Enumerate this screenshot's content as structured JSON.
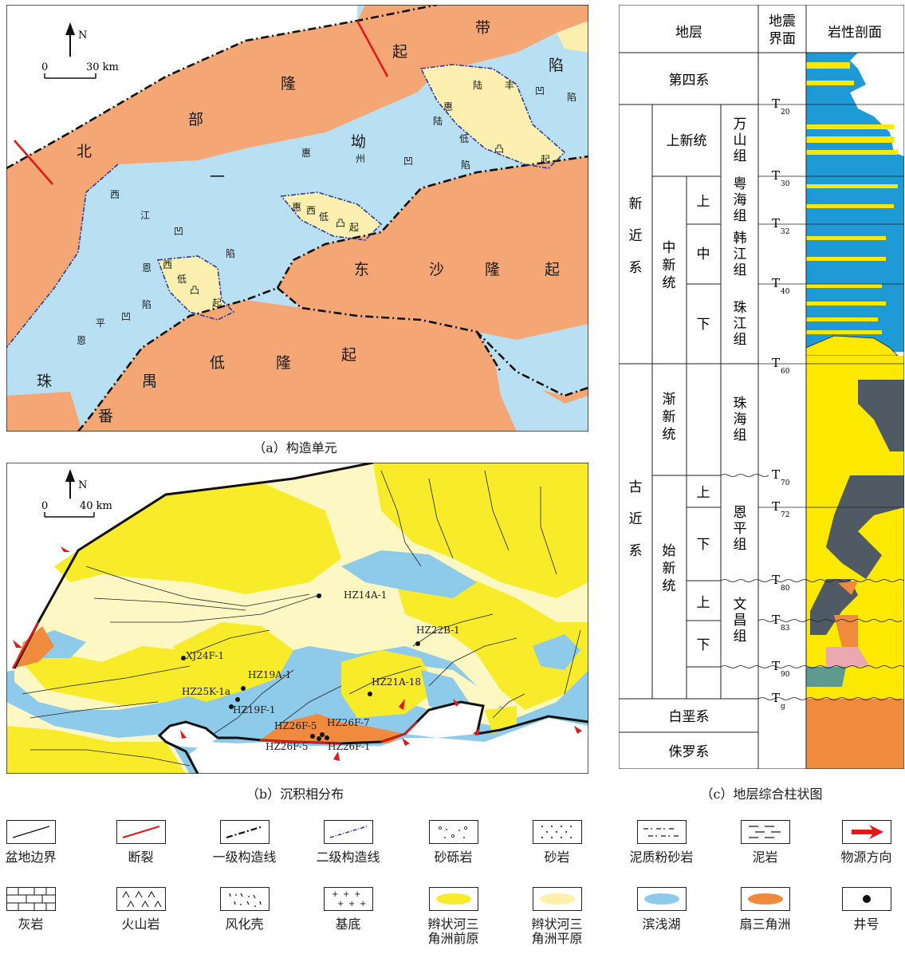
{
  "colors": {
    "uplift": "#f4a775",
    "sag": "#b8dff2",
    "low_uplift": "#fcefb0",
    "braided_front": "#f8ec2a",
    "braided_plain": "#fdf7c4",
    "shore_lake": "#8ecbea",
    "fan_delta": "#f08a3c",
    "fault": "#e0191b",
    "mud": "#1e9ad6",
    "sand": "#fde900",
    "dark_mud": "#505a64",
    "basement": "#f08a3c",
    "weathered": "#e8a9b0",
    "volcanic": "#5e9a90"
  },
  "panel_a": {
    "caption": "（a）构造单元",
    "north": "N",
    "scale_zero": "0",
    "scale_label": "30 km",
    "labels": {
      "bei": "北",
      "bu": "部",
      "long": "隆",
      "qi": "起",
      "dai": "带",
      "yi": "一",
      "hui": "惠",
      "ao": "坳",
      "zhou": "州",
      "ao2": "凹",
      "xian": "陷",
      "lufeng_lu": "陆",
      "lufeng_feng": "丰",
      "lufeng_ao": "凹",
      "lufeng_xian": "陷",
      "xian_top": "陷",
      "hl_hui": "惠",
      "hl_lu": "陆",
      "hl_di": "低",
      "hl_tu": "凸",
      "hl_qi": "起",
      "xj_xi": "西",
      "xj_jiang": "江",
      "xj_ao": "凹",
      "xj_xian": "陷",
      "hx_hui": "惠",
      "hx_xi": "西",
      "hx_di": "低",
      "hx_tu": "凸",
      "hx_qi": "起",
      "ex_en": "恩",
      "ex_xi": "西",
      "ex_di": "低",
      "ex_tu": "凸",
      "ex_qi": "起",
      "ep_en": "恩",
      "ep_ping": "平",
      "ep_ao": "凹",
      "ep_xian": "陷",
      "ds_dong": "东",
      "ds_sha": "沙",
      "ds_long": "隆",
      "ds_qi": "起",
      "py_zhu": "珠",
      "py_fan": "番",
      "py_yu": "禺",
      "py_di": "低",
      "py_long": "隆",
      "py_qi": "起"
    }
  },
  "panel_b": {
    "caption": "（b）沉积相分布",
    "north": "N",
    "scale_zero": "0",
    "scale_label": "40 km",
    "wells": [
      "HZ14A-1",
      "HZ22B-1",
      "XJ24F-1",
      "HZ19A-1",
      "HZ25K-1a",
      "HZ19F-1",
      "HZ21A-18",
      "HZ26F-5",
      "HZ26F-7",
      "HZ26F-5",
      "HZ26F-1"
    ]
  },
  "panel_c": {
    "caption": "（c）地层综合柱状图",
    "headers": [
      "地层",
      "地震\n界面",
      "岩性剖面"
    ],
    "systems": [
      "第四系",
      "新\n近\n系",
      "古\n近\n系",
      "白垩系",
      "侏罗系"
    ],
    "series": [
      "上新统",
      "中\n新\n统",
      "渐\n新\n统",
      "始\n新\n统"
    ],
    "sub": [
      "上",
      "中",
      "下",
      "上",
      "下",
      "上",
      "下"
    ],
    "formations": [
      "万\n山\n组",
      "粤\n海\n组",
      "韩\n江\n组",
      "珠\n江\n组",
      "珠\n海\n组",
      "恩\n平\n组",
      "文\n昌\n组"
    ],
    "horizons": [
      {
        "main": "T",
        "sub": "20"
      },
      {
        "main": "T",
        "sub": "30"
      },
      {
        "main": "T",
        "sub": "32"
      },
      {
        "main": "T",
        "sub": "40"
      },
      {
        "main": "T",
        "sub": "60"
      },
      {
        "main": "T",
        "sub": "70"
      },
      {
        "main": "T",
        "sub": "72"
      },
      {
        "main": "T",
        "sub": "80"
      },
      {
        "main": "T",
        "sub": "83"
      },
      {
        "main": "T",
        "sub": "90"
      },
      {
        "main": "T",
        "sub": "g"
      }
    ]
  },
  "legend": [
    {
      "label": "盆地边界"
    },
    {
      "label": "断裂"
    },
    {
      "label": "一级构造线"
    },
    {
      "label": "二级构造线"
    },
    {
      "label": "砂砾岩"
    },
    {
      "label": "砂岩"
    },
    {
      "label": "泥质粉砂岩"
    },
    {
      "label": "泥岩"
    },
    {
      "label": "物源方向"
    },
    {
      "label": "灰岩"
    },
    {
      "label": "火山岩"
    },
    {
      "label": "风化壳"
    },
    {
      "label": "基底"
    },
    {
      "label": "辫状河三\n角洲前原"
    },
    {
      "label": "辫状河三\n角洲平原"
    },
    {
      "label": "滨浅湖"
    },
    {
      "label": "扇三角洲"
    },
    {
      "label": "井号"
    }
  ]
}
